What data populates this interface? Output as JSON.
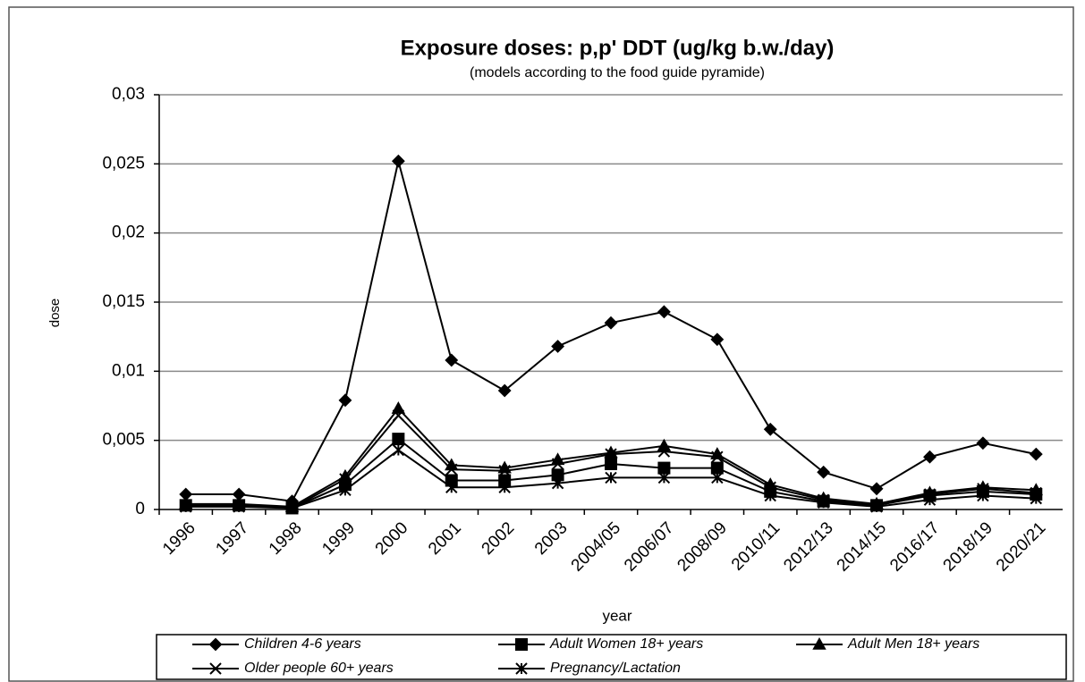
{
  "chart_data": {
    "type": "line",
    "title": "Exposure doses: p,p' DDT (ug/kg b.w./day)",
    "subtitle": "(models according to the food guide pyramide)",
    "x_label": "year",
    "y_label": "dose",
    "categories": [
      "1996",
      "1997",
      "1998",
      "1999",
      "2000",
      "2001",
      "2002",
      "2003",
      "2004/05",
      "2006/07",
      "2008/09",
      "2010/11",
      "2012/13",
      "2014/15",
      "2016/17",
      "2018/19",
      "2020/21"
    ],
    "ylim": [
      0,
      0.03
    ],
    "yticks": [
      0,
      {
        "value": 0.005,
        "label": "0,005"
      },
      {
        "value": 0.01,
        "label": "0,01"
      },
      {
        "value": 0.015,
        "label": "0,015"
      },
      {
        "value": 0.02,
        "label": "0,02"
      },
      {
        "value": 0.025,
        "label": "0,025"
      },
      {
        "value": 0.03,
        "label": "0,03"
      }
    ],
    "grid": true,
    "legend": "bottom",
    "series": [
      {
        "name": "Children 4-6 years",
        "color": "#000000",
        "marker": "diamond",
        "values": [
          0.0011,
          0.0011,
          0.0006,
          0.0079,
          0.0252,
          0.0108,
          0.0086,
          0.0118,
          0.0135,
          0.0143,
          0.0123,
          0.0058,
          0.0027,
          0.0015,
          0.0038,
          0.0048,
          0.004
        ]
      },
      {
        "name": "Adult Women 18+ years",
        "color": "#000000",
        "marker": "square",
        "values": [
          0.0003,
          0.0003,
          0.0001,
          0.0018,
          0.0051,
          0.0021,
          0.0021,
          0.0025,
          0.0033,
          0.003,
          0.003,
          0.0013,
          0.0006,
          0.0003,
          0.001,
          0.0013,
          0.0011
        ]
      },
      {
        "name": "Adult Men 18+ years",
        "color": "#000000",
        "marker": "triangle",
        "values": [
          0.0004,
          0.0004,
          0.0002,
          0.0024,
          0.0073,
          0.0032,
          0.003,
          0.0036,
          0.0041,
          0.0046,
          0.004,
          0.0018,
          0.0008,
          0.0004,
          0.0012,
          0.0016,
          0.0014
        ]
      },
      {
        "name": "Older people 60+ years",
        "color": "#000000",
        "marker": "x",
        "values": [
          0.0003,
          0.0003,
          0.0001,
          0.0022,
          0.0068,
          0.0029,
          0.0028,
          0.0033,
          0.004,
          0.0042,
          0.0038,
          0.0016,
          0.0007,
          0.0003,
          0.0011,
          0.0015,
          0.0012
        ]
      },
      {
        "name": "Pregnancy/Lactation",
        "color": "#000000",
        "marker": "asterisk",
        "values": [
          0.0002,
          0.0002,
          0.0001,
          0.0014,
          0.0043,
          0.0016,
          0.0016,
          0.0019,
          0.0023,
          0.0023,
          0.0023,
          0.001,
          0.0005,
          0.0002,
          0.0007,
          0.001,
          0.0008
        ]
      }
    ]
  }
}
